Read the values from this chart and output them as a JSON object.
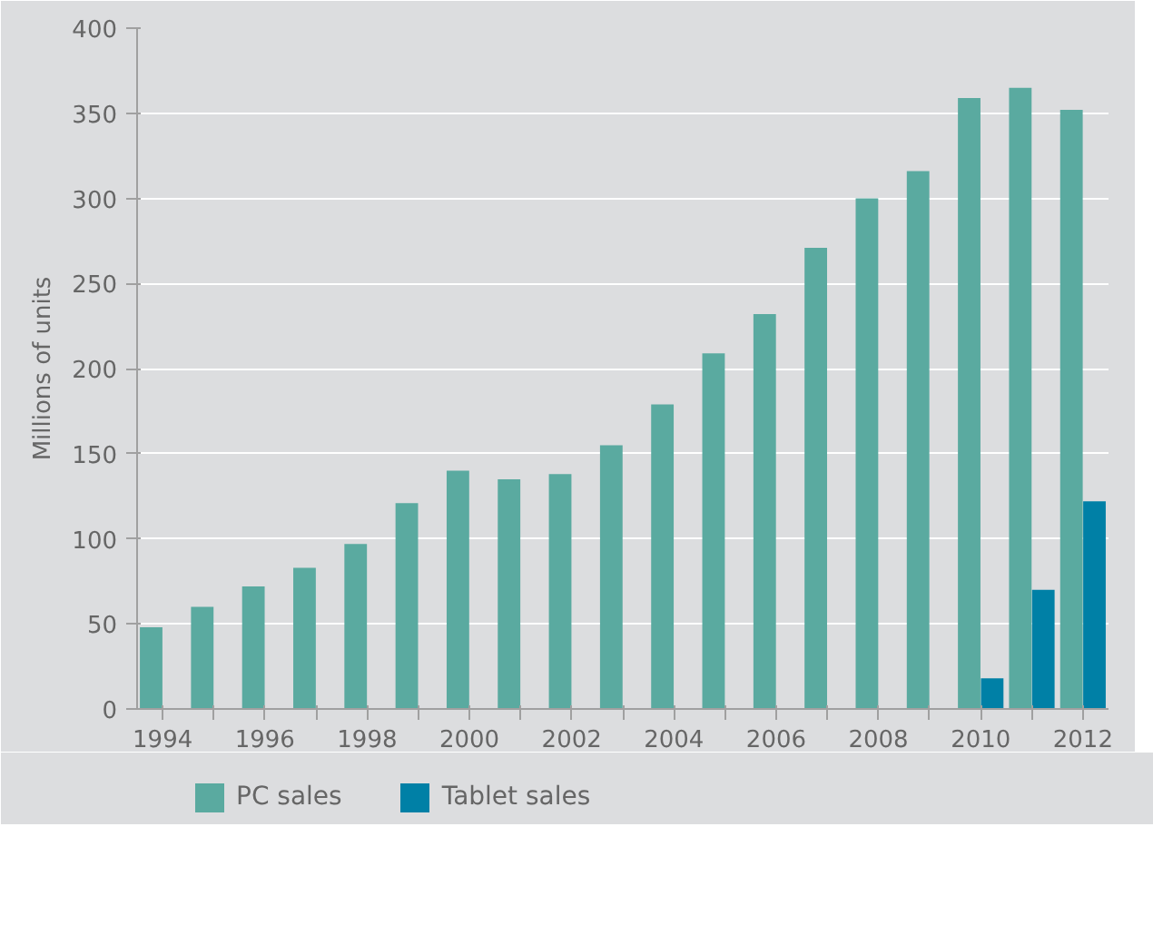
{
  "chart_data": {
    "type": "bar",
    "ylabel": "Millions of units",
    "categories": [
      "1994",
      null,
      "1996",
      null,
      "1998",
      null,
      "2000",
      null,
      "2002",
      null,
      "2004",
      null,
      "2006",
      null,
      "2008",
      null,
      "2010",
      null,
      "2012"
    ],
    "series": [
      {
        "name": "PC sales",
        "color": "#5aaaa0",
        "values": [
          48,
          60,
          72,
          83,
          97,
          121,
          140,
          135,
          138,
          155,
          179,
          209,
          232,
          271,
          300,
          316,
          359,
          365,
          352
        ]
      },
      {
        "name": "Tablet sales",
        "color": "#0080a6",
        "values": [
          null,
          null,
          null,
          null,
          null,
          null,
          null,
          null,
          null,
          null,
          null,
          null,
          null,
          null,
          null,
          null,
          18,
          70,
          122
        ]
      }
    ],
    "ylim": [
      0,
      400
    ],
    "yticks": [
      0,
      50,
      100,
      150,
      200,
      250,
      300,
      350,
      400
    ],
    "grid": "y",
    "legend": "bottom"
  }
}
